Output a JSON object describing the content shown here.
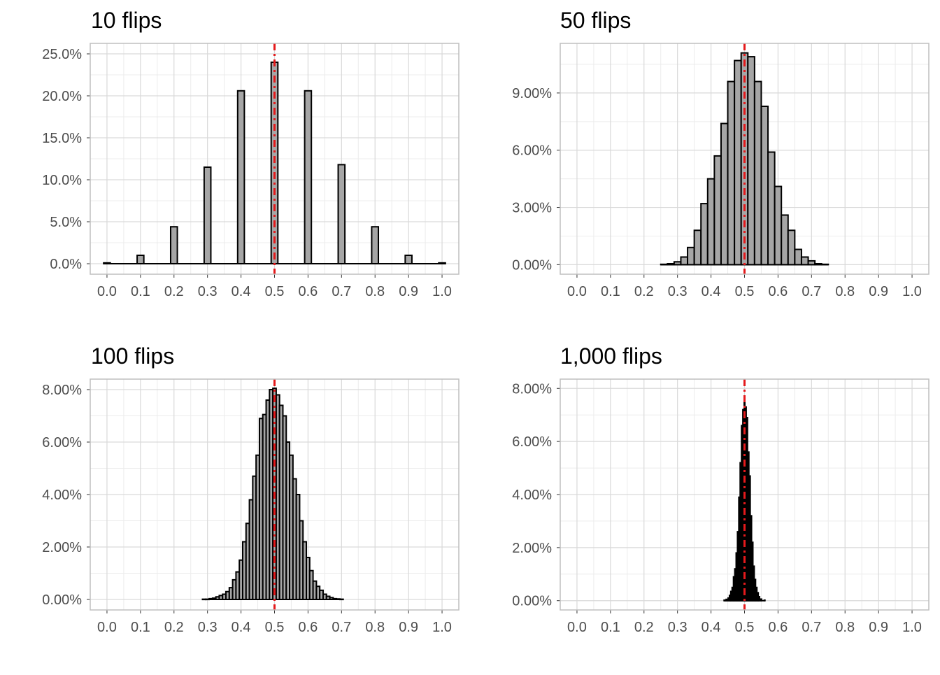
{
  "colors": {
    "bar_fill": "#a6a6a6",
    "bar_stroke": "#000000",
    "reference_line": "#e41a1c",
    "grid_major": "#d9d9d9",
    "grid_minor": "#ececec",
    "panel_border": "#bfbfbf",
    "tick_text": "#4d4d4d"
  },
  "chart_data": [
    {
      "type": "bar",
      "title": "10 flips",
      "xlabel": "",
      "ylabel": "",
      "x_ticks": [
        "0.0",
        "0.1",
        "0.2",
        "0.3",
        "0.4",
        "0.5",
        "0.6",
        "0.7",
        "0.8",
        "0.9",
        "1.0"
      ],
      "y_ticks": [
        0,
        5,
        10,
        15,
        20,
        25
      ],
      "y_tick_labels": [
        "0.0%",
        "5.0%",
        "10.0%",
        "15.0%",
        "20.0%",
        "25.0%"
      ],
      "xlim": [
        -0.05,
        1.05
      ],
      "ylim": [
        -1.25,
        26.25
      ],
      "bin_width": 0.02,
      "reference_x": 0.5,
      "grid": true,
      "x": [
        0.0,
        0.1,
        0.2,
        0.3,
        0.4,
        0.5,
        0.6,
        0.7,
        0.8,
        0.9,
        1.0
      ],
      "values": [
        0.1,
        1.0,
        4.4,
        11.5,
        20.6,
        24.0,
        20.6,
        11.8,
        4.4,
        1.0,
        0.1
      ]
    },
    {
      "type": "bar",
      "title": "50 flips",
      "xlabel": "",
      "ylabel": "",
      "x_ticks": [
        "0.0",
        "0.1",
        "0.2",
        "0.3",
        "0.4",
        "0.5",
        "0.6",
        "0.7",
        "0.8",
        "0.9",
        "1.0"
      ],
      "y_ticks": [
        0,
        3,
        6,
        9
      ],
      "y_tick_labels": [
        "0.00%",
        "3.00%",
        "6.00%",
        "9.00%"
      ],
      "xlim": [
        -0.05,
        1.05
      ],
      "ylim": [
        -0.5,
        11.6
      ],
      "bin_width": 0.02,
      "reference_x": 0.5,
      "grid": true,
      "x": [
        0.26,
        0.28,
        0.3,
        0.32,
        0.34,
        0.36,
        0.38,
        0.4,
        0.42,
        0.44,
        0.46,
        0.48,
        0.5,
        0.52,
        0.54,
        0.56,
        0.58,
        0.6,
        0.62,
        0.64,
        0.66,
        0.68,
        0.7,
        0.72,
        0.74
      ],
      "values": [
        0.02,
        0.05,
        0.15,
        0.4,
        0.9,
        1.8,
        3.2,
        4.5,
        5.7,
        7.4,
        9.6,
        10.7,
        11.1,
        10.9,
        9.6,
        8.3,
        5.9,
        4.1,
        2.6,
        1.8,
        0.8,
        0.4,
        0.2,
        0.05,
        0.02
      ]
    },
    {
      "type": "bar",
      "title": "100 flips",
      "xlabel": "",
      "ylabel": "",
      "x_ticks": [
        "0.0",
        "0.1",
        "0.2",
        "0.3",
        "0.4",
        "0.5",
        "0.6",
        "0.7",
        "0.8",
        "0.9",
        "1.0"
      ],
      "y_ticks": [
        0,
        2,
        4,
        6,
        8
      ],
      "y_tick_labels": [
        "0.00%",
        "2.00%",
        "4.00%",
        "6.00%",
        "8.00%"
      ],
      "xlim": [
        -0.05,
        1.05
      ],
      "ylim": [
        -0.4,
        8.4
      ],
      "bin_width": 0.01,
      "reference_x": 0.5,
      "grid": true,
      "x": [
        0.29,
        0.3,
        0.31,
        0.32,
        0.33,
        0.34,
        0.35,
        0.36,
        0.37,
        0.38,
        0.39,
        0.4,
        0.41,
        0.42,
        0.43,
        0.44,
        0.45,
        0.46,
        0.47,
        0.48,
        0.49,
        0.5,
        0.51,
        0.52,
        0.53,
        0.54,
        0.55,
        0.56,
        0.57,
        0.58,
        0.59,
        0.6,
        0.61,
        0.62,
        0.63,
        0.64,
        0.65,
        0.66,
        0.67,
        0.68,
        0.69,
        0.7
      ],
      "values": [
        0.01,
        0.01,
        0.03,
        0.05,
        0.1,
        0.15,
        0.2,
        0.3,
        0.45,
        0.75,
        1.05,
        1.5,
        2.2,
        2.9,
        3.8,
        4.7,
        5.5,
        6.9,
        7.05,
        7.6,
        8.0,
        8.05,
        7.8,
        7.4,
        7.0,
        6.0,
        5.5,
        4.6,
        4.0,
        3.0,
        2.2,
        1.6,
        1.1,
        0.7,
        0.5,
        0.35,
        0.2,
        0.12,
        0.07,
        0.03,
        0.02,
        0.01
      ]
    },
    {
      "type": "bar",
      "title": "1,000 flips",
      "xlabel": "",
      "ylabel": "",
      "x_ticks": [
        "0.0",
        "0.1",
        "0.2",
        "0.3",
        "0.4",
        "0.5",
        "0.6",
        "0.7",
        "0.8",
        "0.9",
        "1.0"
      ],
      "y_ticks": [
        0,
        2,
        4,
        6,
        8
      ],
      "y_tick_labels": [
        "0.00%",
        "2.00%",
        "4.00%",
        "6.00%",
        "8.00%"
      ],
      "xlim": [
        -0.05,
        1.05
      ],
      "ylim": [
        -0.35,
        8.35
      ],
      "bin_width": 0.002,
      "reference_x": 0.5,
      "grid": true,
      "x": [
        0.44,
        0.446,
        0.452,
        0.456,
        0.46,
        0.464,
        0.468,
        0.472,
        0.476,
        0.48,
        0.484,
        0.488,
        0.492,
        0.496,
        0.5,
        0.504,
        0.508,
        0.512,
        0.516,
        0.52,
        0.524,
        0.528,
        0.532,
        0.536,
        0.54,
        0.544,
        0.55,
        0.56
      ],
      "values": [
        0.02,
        0.05,
        0.1,
        0.2,
        0.35,
        0.5,
        0.9,
        1.2,
        1.8,
        2.6,
        3.9,
        5.2,
        6.6,
        7.2,
        7.7,
        7.3,
        6.9,
        5.6,
        4.7,
        3.2,
        2.2,
        1.3,
        0.8,
        0.5,
        0.3,
        0.15,
        0.06,
        0.02
      ]
    }
  ]
}
